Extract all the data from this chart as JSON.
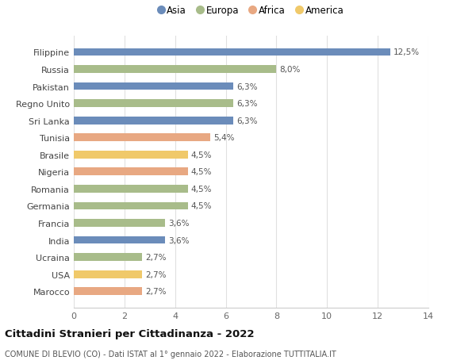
{
  "categories": [
    "Filippine",
    "Russia",
    "Pakistan",
    "Regno Unito",
    "Sri Lanka",
    "Tunisia",
    "Brasile",
    "Nigeria",
    "Romania",
    "Germania",
    "Francia",
    "India",
    "Ucraina",
    "USA",
    "Marocco"
  ],
  "values": [
    12.5,
    8.0,
    6.3,
    6.3,
    6.3,
    5.4,
    4.5,
    4.5,
    4.5,
    4.5,
    3.6,
    3.6,
    2.7,
    2.7,
    2.7
  ],
  "labels": [
    "12,5%",
    "8,0%",
    "6,3%",
    "6,3%",
    "6,3%",
    "5,4%",
    "4,5%",
    "4,5%",
    "4,5%",
    "4,5%",
    "3,6%",
    "3,6%",
    "2,7%",
    "2,7%",
    "2,7%"
  ],
  "colors": [
    "#6b8cba",
    "#a8bc8a",
    "#6b8cba",
    "#a8bc8a",
    "#6b8cba",
    "#e8a882",
    "#f0c96a",
    "#e8a882",
    "#a8bc8a",
    "#a8bc8a",
    "#a8bc8a",
    "#6b8cba",
    "#a8bc8a",
    "#f0c96a",
    "#e8a882"
  ],
  "legend_labels": [
    "Asia",
    "Europa",
    "Africa",
    "America"
  ],
  "legend_colors": [
    "#6b8cba",
    "#a8bc8a",
    "#e8a882",
    "#f0c96a"
  ],
  "title": "Cittadini Stranieri per Cittadinanza - 2022",
  "subtitle": "COMUNE DI BLEVIO (CO) - Dati ISTAT al 1° gennaio 2022 - Elaborazione TUTTITALIA.IT",
  "xlim": [
    0,
    14
  ],
  "xticks": [
    0,
    2,
    4,
    6,
    8,
    10,
    12,
    14
  ],
  "bg_color": "#ffffff",
  "grid_color": "#e0e0e0",
  "bar_height": 0.45
}
